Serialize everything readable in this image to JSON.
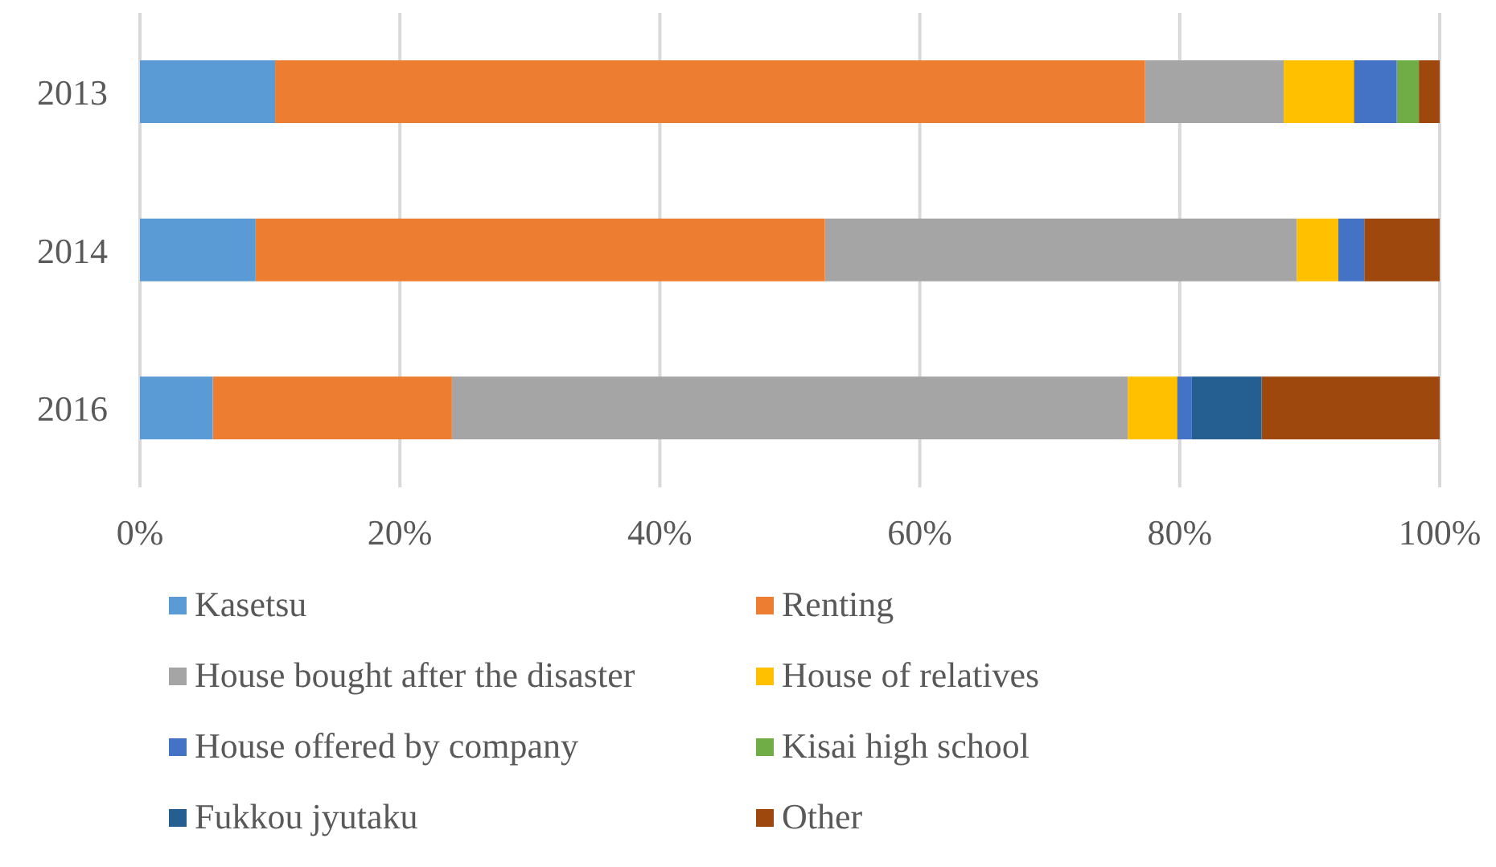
{
  "chart_data": {
    "type": "bar",
    "orientation": "horizontal",
    "stacked": true,
    "categories": [
      "2013",
      "2014",
      "2016"
    ],
    "series": [
      {
        "name": "Kasetsu",
        "color": "#5b9bd5",
        "values": [
          10.4,
          8.9,
          5.6
        ]
      },
      {
        "name": "Renting",
        "color": "#ed7d31",
        "values": [
          66.9,
          43.8,
          18.4
        ]
      },
      {
        "name": "House bought after the disaster",
        "color": "#a5a5a5",
        "values": [
          10.7,
          36.3,
          52.0
        ]
      },
      {
        "name": "House of relatives",
        "color": "#ffc000",
        "values": [
          5.4,
          3.2,
          3.8
        ]
      },
      {
        "name": "House offered by company",
        "color": "#4472c4",
        "values": [
          3.3,
          2.0,
          1.1
        ]
      },
      {
        "name": "Kisai high school",
        "color": "#70ad47",
        "values": [
          1.7,
          0,
          0
        ]
      },
      {
        "name": "Fukkou jyutaku",
        "color": "#255e91",
        "values": [
          0,
          0,
          5.4
        ]
      },
      {
        "name": "Other",
        "color": "#9e480e",
        "values": [
          1.6,
          5.8,
          13.7
        ]
      }
    ],
    "xlim": [
      0,
      100
    ],
    "xticks": [
      {
        "value": 0,
        "label": "0%"
      },
      {
        "value": 20,
        "label": "20%"
      },
      {
        "value": 40,
        "label": "40%"
      },
      {
        "value": 60,
        "label": "60%"
      },
      {
        "value": 80,
        "label": "80%"
      },
      {
        "value": 100,
        "label": "100%"
      }
    ],
    "grid": "x",
    "legend": "bottom"
  }
}
